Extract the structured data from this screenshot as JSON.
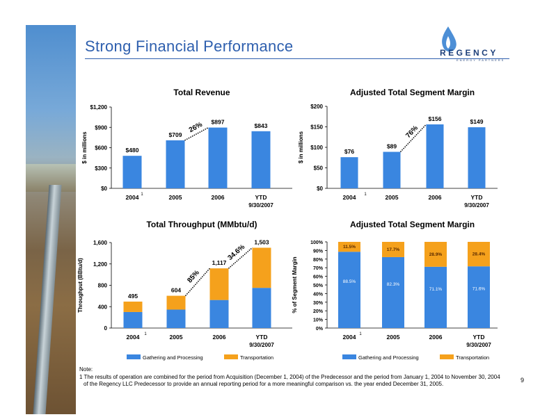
{
  "slide": {
    "title": "Strong Financial Performance",
    "logo_name": "REGENCY",
    "logo_sub": "ENERGY PARTNERS",
    "page_number": "9",
    "note_label": "Note:",
    "note_line1": "1 The results of operation are combined for the period from Acquisition (December 1, 2004) of the Predecessor and the period from January 1, 2004 to November 30, 2004",
    "note_line2": "of the Regency LLC Predecessor to provide an annual reporting period for a more meaningful comparison vs. the year ended December 31, 2005.",
    "colors": {
      "primary": "#3a86e0",
      "secondary": "#f5a11c",
      "title": "#2e5fae"
    }
  },
  "chart_data": [
    {
      "id": "revenue",
      "type": "bar",
      "title": "Total Revenue",
      "ylabel": "$ in millions",
      "ylim": [
        0,
        1200
      ],
      "yticks": [
        0,
        300,
        600,
        900,
        1200
      ],
      "ytick_labels": [
        "$0",
        "$300",
        "$600",
        "$900",
        "$1,200"
      ],
      "categories": [
        "2004",
        "2005",
        "2006",
        "YTD"
      ],
      "category_sublabels": [
        "",
        "",
        "",
        "9/30/2007"
      ],
      "footnote_marker": "1",
      "values": [
        480,
        709,
        897,
        843
      ],
      "data_labels": [
        "$480",
        "$709",
        "$897",
        "$843"
      ],
      "growth_label": "26%",
      "grid": false
    },
    {
      "id": "segment_margin",
      "type": "bar",
      "title": "Adjusted Total Segment Margin",
      "ylabel": "$ in millions",
      "ylim": [
        0,
        200
      ],
      "yticks": [
        0,
        50,
        100,
        150,
        200
      ],
      "ytick_labels": [
        "$0",
        "$50",
        "$100",
        "$150",
        "$200"
      ],
      "categories": [
        "2004",
        "2005",
        "2006",
        "YTD"
      ],
      "category_sublabels": [
        "",
        "",
        "",
        "9/30/2007"
      ],
      "footnote_marker": "1",
      "values": [
        76,
        89,
        156,
        149
      ],
      "data_labels": [
        "$76",
        "$89",
        "$156",
        "$149"
      ],
      "growth_label": "76%",
      "grid": false
    },
    {
      "id": "throughput",
      "type": "bar",
      "stacked": true,
      "title": "Total Throughput (MMbtu/d)",
      "ylabel": "Throughput (BBtu/d)",
      "ylim": [
        0,
        1600
      ],
      "yticks": [
        0,
        400,
        800,
        1200,
        1600
      ],
      "ytick_labels": [
        "0",
        "400",
        "800",
        "1,200",
        "1,600"
      ],
      "categories": [
        "2004",
        "2005",
        "2006",
        "YTD"
      ],
      "category_sublabels": [
        "",
        "",
        "",
        "9/30/2007"
      ],
      "footnote_marker": "1",
      "series": [
        {
          "name": "Gathering and Processing",
          "values": [
            300,
            345,
            525,
            752
          ]
        },
        {
          "name": "Transportation",
          "values": [
            195,
            259,
            592,
            751
          ]
        }
      ],
      "totals": [
        495,
        604,
        1117,
        1503
      ],
      "data_labels": [
        "495",
        "604",
        "1,117",
        "1,503"
      ],
      "growth_labels": [
        "85%",
        "34.6%"
      ],
      "legend_placement": "bottom",
      "grid": false
    },
    {
      "id": "margin_mix",
      "type": "bar",
      "stacked": true,
      "title": "Adjusted Total Segment Margin",
      "ylabel": "% of Segment Margin",
      "ylim": [
        0,
        100
      ],
      "yticks": [
        0,
        10,
        20,
        30,
        40,
        50,
        60,
        70,
        80,
        90,
        100
      ],
      "ytick_labels": [
        "0%",
        "10%",
        "20%",
        "30%",
        "40%",
        "50%",
        "60%",
        "70%",
        "80%",
        "90%",
        "100%"
      ],
      "categories": [
        "2004",
        "2005",
        "2006",
        "YTD"
      ],
      "category_sublabels": [
        "",
        "",
        "",
        "9/30/2007"
      ],
      "footnote_marker": "1",
      "series": [
        {
          "name": "Gathering and Processing",
          "values": [
            88.5,
            82.3,
            71.1,
            71.6
          ],
          "labels": [
            "88.5%",
            "82.3%",
            "71.1%",
            "71.6%"
          ]
        },
        {
          "name": "Transportation",
          "values": [
            11.5,
            17.7,
            28.9,
            28.4
          ],
          "labels": [
            "11.5%",
            "17.7%",
            "28.9%",
            "28.4%"
          ]
        }
      ],
      "legend_placement": "bottom",
      "grid": false
    }
  ]
}
